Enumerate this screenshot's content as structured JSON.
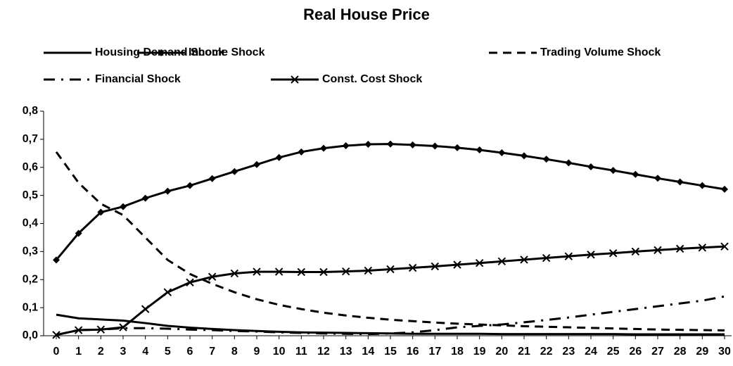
{
  "chart_data": {
    "type": "line",
    "title": "Real House Price",
    "x": [
      0,
      1,
      2,
      3,
      4,
      5,
      6,
      7,
      8,
      9,
      10,
      11,
      12,
      13,
      14,
      15,
      16,
      17,
      18,
      19,
      20,
      21,
      22,
      23,
      24,
      25,
      26,
      27,
      28,
      29,
      30
    ],
    "xlim": [
      0,
      30
    ],
    "ylim": [
      0,
      0.8
    ],
    "yticks": [
      {
        "value": 0,
        "label": "0,0"
      },
      {
        "value": 0.1,
        "label": "0,1"
      },
      {
        "value": 0.2,
        "label": "0,2"
      },
      {
        "value": 0.3,
        "label": "0,3"
      },
      {
        "value": 0.4,
        "label": "0,4"
      },
      {
        "value": 0.5,
        "label": "0,5"
      },
      {
        "value": 0.6,
        "label": "0,6"
      },
      {
        "value": 0.7,
        "label": "0,7"
      },
      {
        "value": 0.8,
        "label": "0,8"
      }
    ],
    "grid": false,
    "legend": "top",
    "series": [
      {
        "name": "Housing Demand Shock",
        "color": "#000000",
        "dash": "solid",
        "marker": "none",
        "values": [
          0.075,
          0.062,
          0.058,
          0.054,
          0.045,
          0.035,
          0.029,
          0.024,
          0.02,
          0.017,
          0.014,
          0.012,
          0.011,
          0.01,
          0.009,
          0.008,
          0.007,
          0.007,
          0.007,
          0.007,
          0.006,
          0.006,
          0.006,
          0.006,
          0.006,
          0.006,
          0.005,
          0.005,
          0.005,
          0.005,
          0.005
        ]
      },
      {
        "name": "Income Shock",
        "color": "#000000",
        "dash": "solid",
        "marker": "diamond",
        "values": [
          0.27,
          0.365,
          0.44,
          0.46,
          0.49,
          0.515,
          0.535,
          0.56,
          0.585,
          0.61,
          0.635,
          0.655,
          0.668,
          0.677,
          0.682,
          0.683,
          0.68,
          0.676,
          0.67,
          0.662,
          0.652,
          0.641,
          0.629,
          0.616,
          0.602,
          0.589,
          0.575,
          0.561,
          0.548,
          0.535,
          0.522
        ]
      },
      {
        "name": "Trading Volume Shock",
        "color": "#000000",
        "dash": "dash",
        "marker": "none",
        "values": [
          0.655,
          0.545,
          0.47,
          0.43,
          0.35,
          0.27,
          0.22,
          0.185,
          0.155,
          0.13,
          0.11,
          0.095,
          0.082,
          0.072,
          0.064,
          0.057,
          0.052,
          0.047,
          0.043,
          0.04,
          0.037,
          0.034,
          0.032,
          0.03,
          0.028,
          0.026,
          0.024,
          0.022,
          0.021,
          0.02,
          0.019
        ]
      },
      {
        "name": "Financial Shock",
        "color": "#000000",
        "dash": "dashdot",
        "marker": "none",
        "values": [
          0.003,
          0.02,
          0.022,
          0.027,
          0.027,
          0.025,
          0.022,
          0.02,
          0.017,
          0.015,
          0.012,
          0.01,
          0.008,
          0.007,
          0.006,
          0.008,
          0.012,
          0.02,
          0.03,
          0.035,
          0.04,
          0.048,
          0.056,
          0.065,
          0.075,
          0.085,
          0.095,
          0.105,
          0.115,
          0.125,
          0.14
        ]
      },
      {
        "name": "Const. Cost Shock",
        "color": "#000000",
        "dash": "solid",
        "marker": "x",
        "values": [
          0.003,
          0.02,
          0.022,
          0.03,
          0.095,
          0.155,
          0.19,
          0.21,
          0.222,
          0.228,
          0.228,
          0.227,
          0.227,
          0.229,
          0.232,
          0.237,
          0.242,
          0.247,
          0.253,
          0.259,
          0.265,
          0.271,
          0.277,
          0.283,
          0.289,
          0.294,
          0.3,
          0.305,
          0.31,
          0.314,
          0.318
        ]
      }
    ]
  }
}
